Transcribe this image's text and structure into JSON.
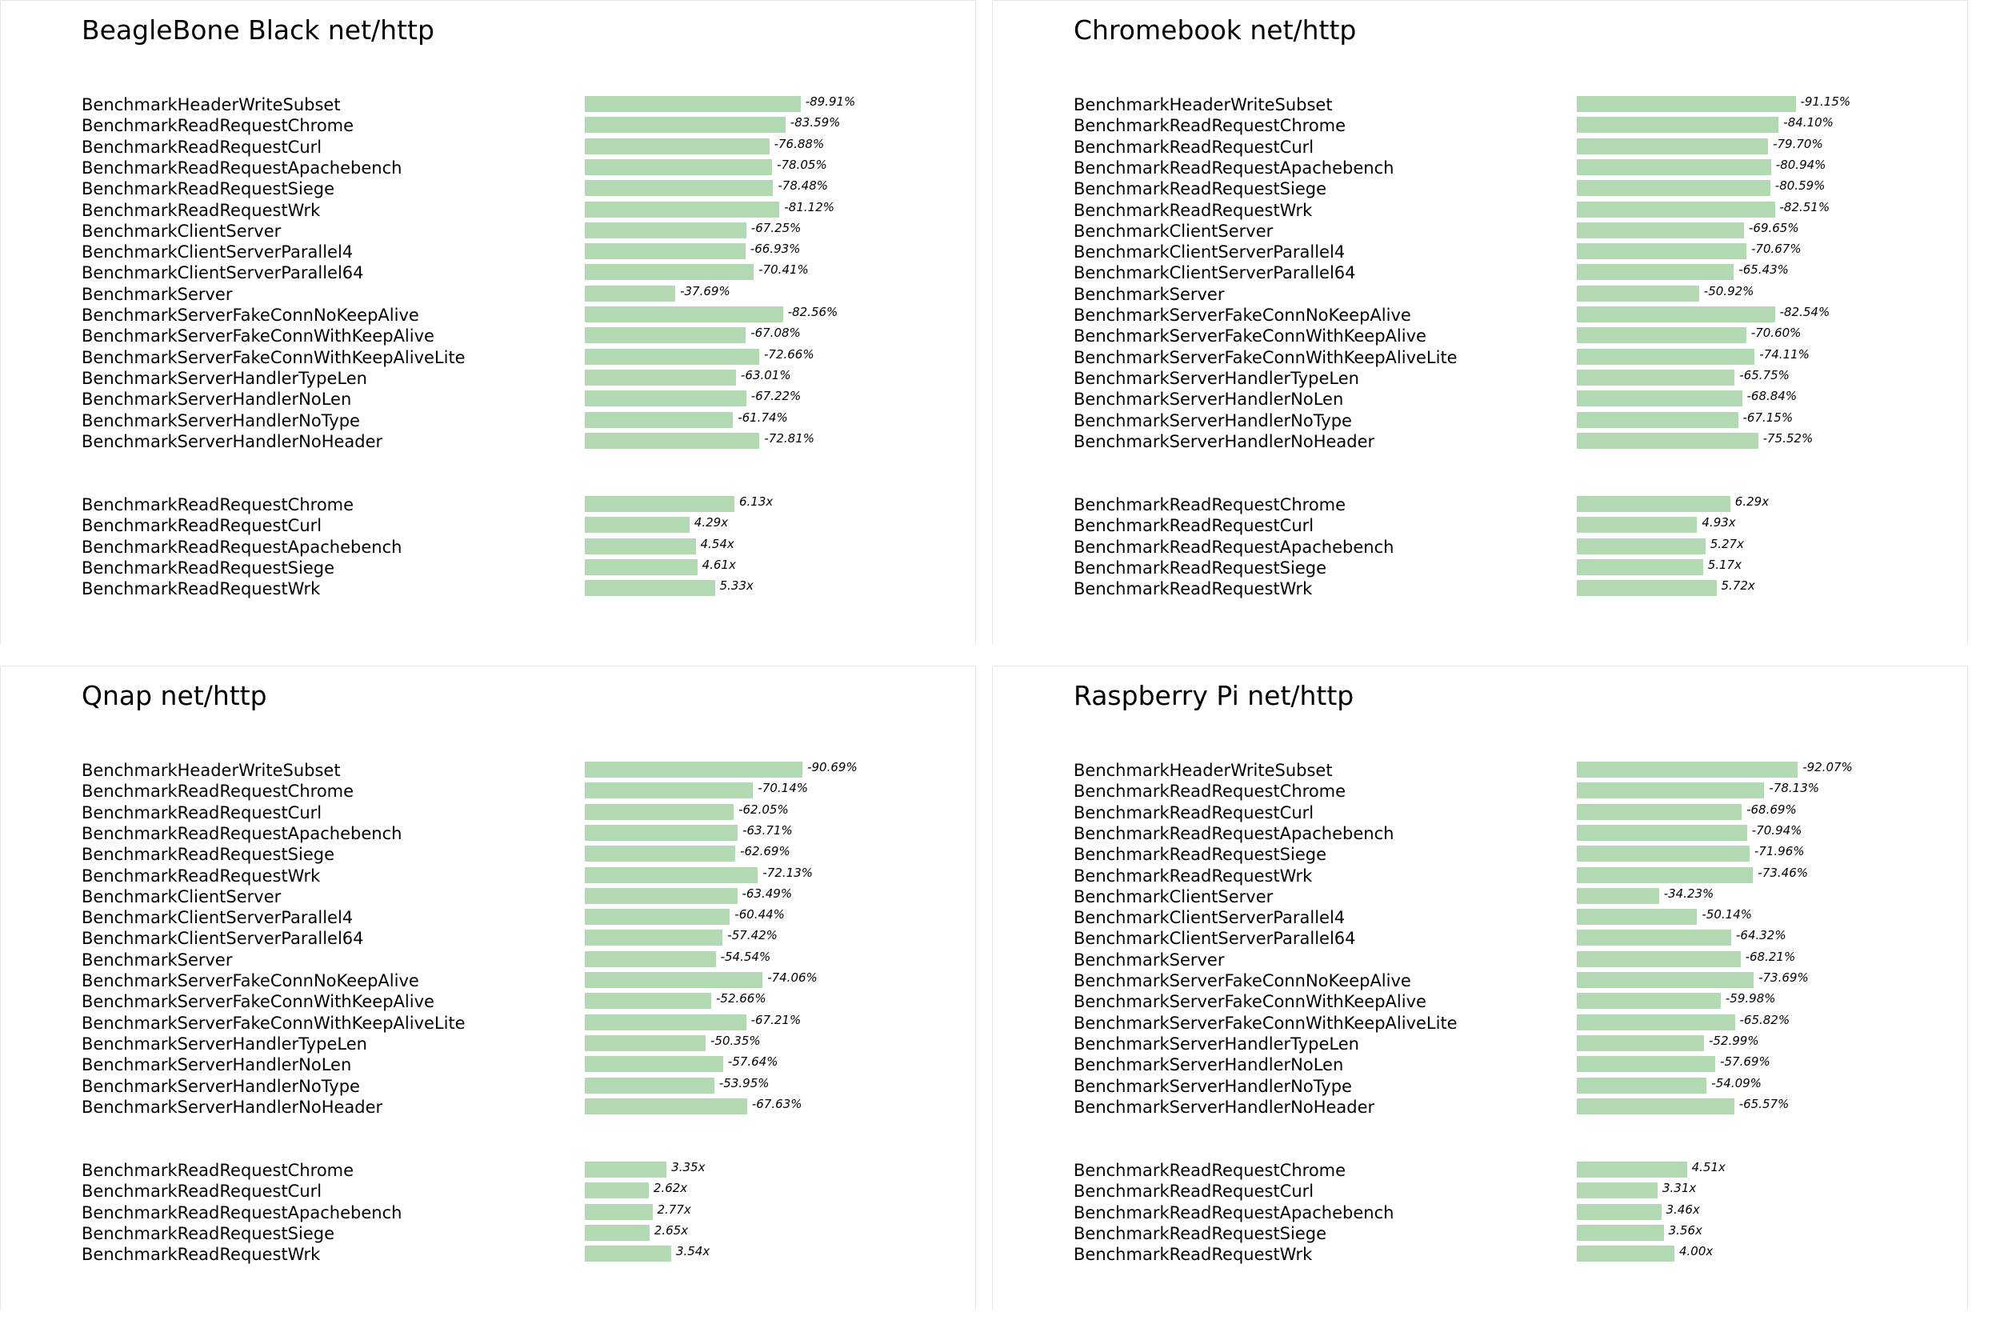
{
  "chart_data": [
    {
      "type": "bar",
      "title": "BeagleBone Black net/http",
      "groups": [
        {
          "categories": [
            "BenchmarkHeaderWriteSubset",
            "BenchmarkReadRequestChrome",
            "BenchmarkReadRequestCurl",
            "BenchmarkReadRequestApachebench",
            "BenchmarkReadRequestSiege",
            "BenchmarkReadRequestWrk",
            "BenchmarkClientServer",
            "BenchmarkClientServerParallel4",
            "BenchmarkClientServerParallel64",
            "BenchmarkServer",
            "BenchmarkServerFakeConnNoKeepAlive",
            "BenchmarkServerFakeConnWithKeepAlive",
            "BenchmarkServerFakeConnWithKeepAliveLite",
            "BenchmarkServerHandlerTypeLen",
            "BenchmarkServerHandlerNoLen",
            "BenchmarkServerHandlerNoType",
            "BenchmarkServerHandlerNoHeader"
          ],
          "values": [
            -89.91,
            -83.59,
            -76.88,
            -78.05,
            -78.48,
            -81.12,
            -67.25,
            -66.93,
            -70.41,
            -37.69,
            -82.56,
            -67.08,
            -72.66,
            -63.01,
            -67.22,
            -61.74,
            -72.81
          ],
          "labels": [
            "-89.91%",
            "-83.59%",
            "-76.88%",
            "-78.05%",
            "-78.48%",
            "-81.12%",
            "-67.25%",
            "-66.93%",
            "-70.41%",
            "-37.69%",
            "-82.56%",
            "-67.08%",
            "-72.66%",
            "-63.01%",
            "-67.22%",
            "-61.74%",
            "-72.81%"
          ]
        },
        {
          "categories": [
            "BenchmarkReadRequestChrome",
            "BenchmarkReadRequestCurl",
            "BenchmarkReadRequestApachebench",
            "BenchmarkReadRequestSiege",
            "BenchmarkReadRequestWrk"
          ],
          "values": [
            6.13,
            4.29,
            4.54,
            4.61,
            5.33
          ],
          "labels": [
            "6.13x",
            "4.29x",
            "4.54x",
            "4.61x",
            "5.33x"
          ]
        }
      ]
    },
    {
      "type": "bar",
      "title": "Chromebook net/http",
      "groups": [
        {
          "categories": [
            "BenchmarkHeaderWriteSubset",
            "BenchmarkReadRequestChrome",
            "BenchmarkReadRequestCurl",
            "BenchmarkReadRequestApachebench",
            "BenchmarkReadRequestSiege",
            "BenchmarkReadRequestWrk",
            "BenchmarkClientServer",
            "BenchmarkClientServerParallel4",
            "BenchmarkClientServerParallel64",
            "BenchmarkServer",
            "BenchmarkServerFakeConnNoKeepAlive",
            "BenchmarkServerFakeConnWithKeepAlive",
            "BenchmarkServerFakeConnWithKeepAliveLite",
            "BenchmarkServerHandlerTypeLen",
            "BenchmarkServerHandlerNoLen",
            "BenchmarkServerHandlerNoType",
            "BenchmarkServerHandlerNoHeader"
          ],
          "values": [
            -91.15,
            -84.1,
            -79.7,
            -80.94,
            -80.59,
            -82.51,
            -69.65,
            -70.67,
            -65.43,
            -50.92,
            -82.54,
            -70.6,
            -74.11,
            -65.75,
            -68.84,
            -67.15,
            -75.52
          ],
          "labels": [
            "-91.15%",
            "-84.10%",
            "-79.70%",
            "-80.94%",
            "-80.59%",
            "-82.51%",
            "-69.65%",
            "-70.67%",
            "-65.43%",
            "-50.92%",
            "-82.54%",
            "-70.60%",
            "-74.11%",
            "-65.75%",
            "-68.84%",
            "-67.15%",
            "-75.52%"
          ]
        },
        {
          "categories": [
            "BenchmarkReadRequestChrome",
            "BenchmarkReadRequestCurl",
            "BenchmarkReadRequestApachebench",
            "BenchmarkReadRequestSiege",
            "BenchmarkReadRequestWrk"
          ],
          "values": [
            6.29,
            4.93,
            5.27,
            5.17,
            5.72
          ],
          "labels": [
            "6.29x",
            "4.93x",
            "5.27x",
            "5.17x",
            "5.72x"
          ]
        }
      ]
    },
    {
      "type": "bar",
      "title": "Qnap net/http",
      "groups": [
        {
          "categories": [
            "BenchmarkHeaderWriteSubset",
            "BenchmarkReadRequestChrome",
            "BenchmarkReadRequestCurl",
            "BenchmarkReadRequestApachebench",
            "BenchmarkReadRequestSiege",
            "BenchmarkReadRequestWrk",
            "BenchmarkClientServer",
            "BenchmarkClientServerParallel4",
            "BenchmarkClientServerParallel64",
            "BenchmarkServer",
            "BenchmarkServerFakeConnNoKeepAlive",
            "BenchmarkServerFakeConnWithKeepAlive",
            "BenchmarkServerFakeConnWithKeepAliveLite",
            "BenchmarkServerHandlerTypeLen",
            "BenchmarkServerHandlerNoLen",
            "BenchmarkServerHandlerNoType",
            "BenchmarkServerHandlerNoHeader"
          ],
          "values": [
            -90.69,
            -70.14,
            -62.05,
            -63.71,
            -62.69,
            -72.13,
            -63.49,
            -60.44,
            -57.42,
            -54.54,
            -74.06,
            -52.66,
            -67.21,
            -50.35,
            -57.64,
            -53.95,
            -67.63
          ],
          "labels": [
            "-90.69%",
            "-70.14%",
            "-62.05%",
            "-63.71%",
            "-62.69%",
            "-72.13%",
            "-63.49%",
            "-60.44%",
            "-57.42%",
            "-54.54%",
            "-74.06%",
            "-52.66%",
            "-67.21%",
            "-50.35%",
            "-57.64%",
            "-53.95%",
            "-67.63%"
          ]
        },
        {
          "categories": [
            "BenchmarkReadRequestChrome",
            "BenchmarkReadRequestCurl",
            "BenchmarkReadRequestApachebench",
            "BenchmarkReadRequestSiege",
            "BenchmarkReadRequestWrk"
          ],
          "values": [
            3.35,
            2.62,
            2.77,
            2.65,
            3.54
          ],
          "labels": [
            "3.35x",
            "2.62x",
            "2.77x",
            "2.65x",
            "3.54x"
          ]
        }
      ]
    },
    {
      "type": "bar",
      "title": "Raspberry Pi net/http",
      "groups": [
        {
          "categories": [
            "BenchmarkHeaderWriteSubset",
            "BenchmarkReadRequestChrome",
            "BenchmarkReadRequestCurl",
            "BenchmarkReadRequestApachebench",
            "BenchmarkReadRequestSiege",
            "BenchmarkReadRequestWrk",
            "BenchmarkClientServer",
            "BenchmarkClientServerParallel4",
            "BenchmarkClientServerParallel64",
            "BenchmarkServer",
            "BenchmarkServerFakeConnNoKeepAlive",
            "BenchmarkServerFakeConnWithKeepAlive",
            "BenchmarkServerFakeConnWithKeepAliveLite",
            "BenchmarkServerHandlerTypeLen",
            "BenchmarkServerHandlerNoLen",
            "BenchmarkServerHandlerNoType",
            "BenchmarkServerHandlerNoHeader"
          ],
          "values": [
            -92.07,
            -78.13,
            -68.69,
            -70.94,
            -71.96,
            -73.46,
            -34.23,
            -50.14,
            -64.32,
            -68.21,
            -73.69,
            -59.98,
            -65.82,
            -52.99,
            -57.69,
            -54.09,
            -65.57
          ],
          "labels": [
            "-92.07%",
            "-78.13%",
            "-68.69%",
            "-70.94%",
            "-71.96%",
            "-73.46%",
            "-34.23%",
            "-50.14%",
            "-64.32%",
            "-68.21%",
            "-73.69%",
            "-59.98%",
            "-65.82%",
            "-52.99%",
            "-57.69%",
            "-54.09%",
            "-65.57%"
          ]
        },
        {
          "categories": [
            "BenchmarkReadRequestChrome",
            "BenchmarkReadRequestCurl",
            "BenchmarkReadRequestApachebench",
            "BenchmarkReadRequestSiege",
            "BenchmarkReadRequestWrk"
          ],
          "values": [
            4.51,
            3.31,
            3.46,
            3.56,
            4.0
          ],
          "labels": [
            "4.51x",
            "3.31x",
            "3.46x",
            "3.56x",
            "4.00x"
          ]
        }
      ]
    }
  ],
  "colors": {
    "bar": "#b3d9b3"
  }
}
